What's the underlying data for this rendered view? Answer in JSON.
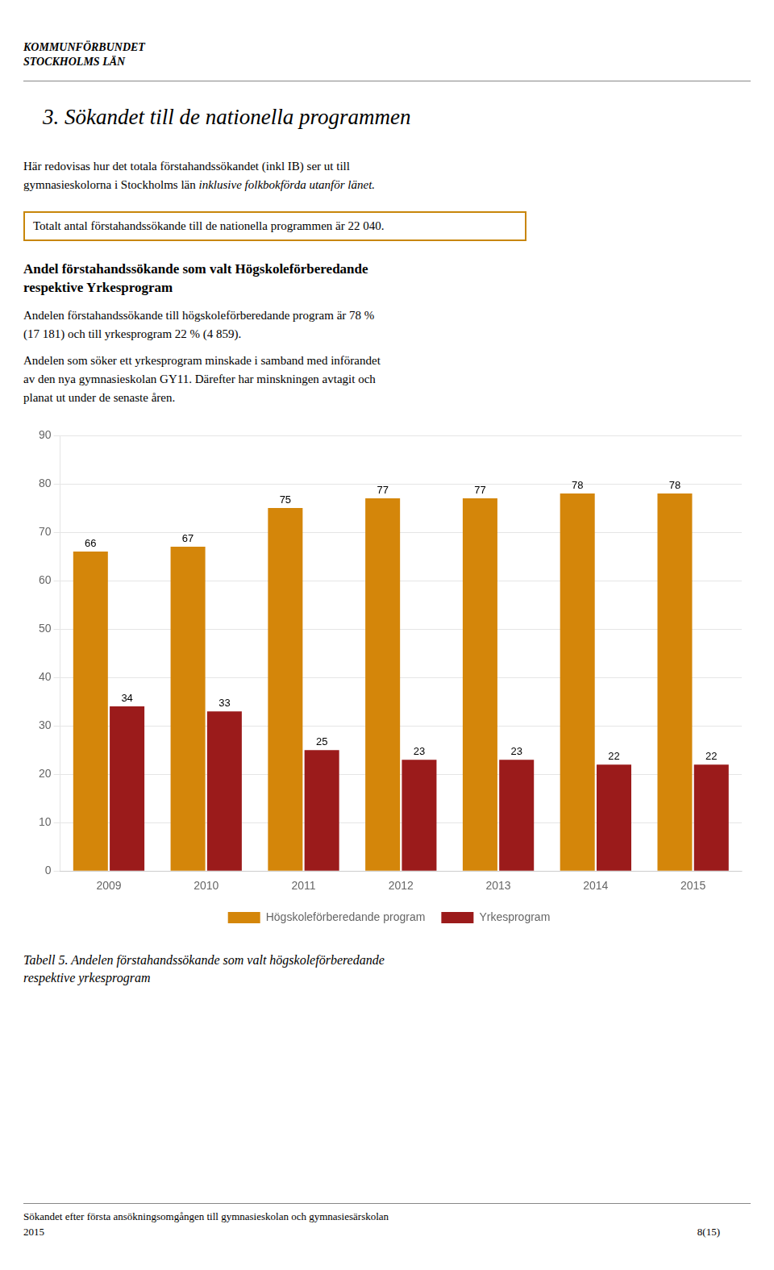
{
  "chart_data": {
    "type": "bar",
    "title": "Andel förstahandssökande som valt Högskoleförberedande\nrespektive Yrkesprogram",
    "annotations": [
      "KOMMUNFÖRBUNDET",
      "STOCKHOLMS LÄN",
      "3.  Sökandet till de nationella programmen",
      "Här redovisas hur det totala förstahandssökandet (inkl IB) ser ut till\ngymnasieskolorna i Stockholms län ",
      "inklusive folkbokförda utanför länet.",
      "Totalt antal förstahandssökande till de nationella programmen är 22 040.",
      "Andelen förstahandssökande till högskoleförberedande program är 78 %\n(17 181) och till yrkesprogram 22 % (4 859).",
      "Andelen som söker ett yrkesprogram minskade i samband med införandet\nav den nya gymnasieskolan GY11. Därefter har minskningen avtagit och\nplanat ut under de senaste åren.",
      "Tabell 5. Andelen förstahandssökande som valt högskoleförberedande",
      "respektive yrkesprogram",
      "Sökandet efter första ansökningsomgången till gymnasieskolan och gymnasiesärskolan",
      "2015",
      "8(15)"
    ],
    "categories": [
      "2009",
      "2010",
      "2011",
      "2012",
      "2013",
      "2014",
      "2015"
    ],
    "series": [
      {
        "name": "Högskoleförberedande program",
        "color": "#D4860A",
        "values": [
          66,
          67,
          75,
          77,
          77,
          78,
          78
        ]
      },
      {
        "name": "Yrkesprogram",
        "color": "#9B1B1B",
        "values": [
          34,
          33,
          25,
          23,
          23,
          22,
          22
        ]
      }
    ],
    "ylim": [
      0,
      90
    ],
    "yticks": [
      0,
      10,
      20,
      30,
      40,
      50,
      60,
      70,
      80,
      90
    ],
    "grid": true,
    "legend": "bottom",
    "data_labels": true
  }
}
